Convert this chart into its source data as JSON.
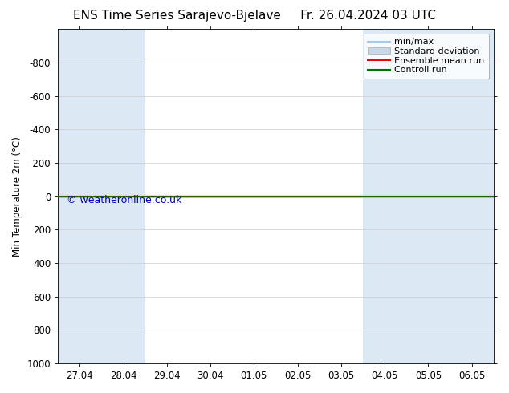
{
  "title": "ENS Time Series Sarajevo-Bjelave",
  "title_right": "Fr. 26.04.2024 03 UTC",
  "ylabel": "Min Temperature 2m (°C)",
  "watermark": "© weatheronline.co.uk",
  "xlim_start": 0,
  "xlim_end": 10,
  "ylim_bottom": 1000,
  "ylim_top": -1000,
  "yticks": [
    -800,
    -600,
    -400,
    -200,
    0,
    200,
    400,
    600,
    800,
    1000
  ],
  "xtick_labels": [
    "27.04",
    "28.04",
    "29.04",
    "30.04",
    "01.05",
    "02.05",
    "03.05",
    "04.05",
    "05.05",
    "06.05"
  ],
  "xtick_positions": [
    0.5,
    1.5,
    2.5,
    3.5,
    4.5,
    5.5,
    6.5,
    7.5,
    8.5,
    9.5
  ],
  "shade_bands": [
    [
      0.0,
      0.5,
      "#dce9f5"
    ],
    [
      0.5,
      1.5,
      "#dce9f5"
    ],
    [
      1.5,
      2.5,
      "#dce9f5"
    ],
    [
      2.5,
      7.5,
      "#ffffff"
    ],
    [
      7.5,
      8.5,
      "#dce9f5"
    ],
    [
      8.5,
      9.5,
      "#dce9f5"
    ],
    [
      9.5,
      10.0,
      "#dce9f5"
    ]
  ],
  "green_line_y": 0,
  "red_line_y": 0,
  "cyan_line_y": 0,
  "bg_color": "#ffffff",
  "plot_bg_color": "#ffffff",
  "legend_labels": [
    "min/max",
    "Standard deviation",
    "Ensemble mean run",
    "Controll run"
  ],
  "minmax_line_color": "#a8c8e8",
  "stddev_fill_color": "#c8d8e8",
  "ensemble_mean_color": "#ff0000",
  "control_run_color": "#007000",
  "title_fontsize": 11,
  "tick_fontsize": 8.5,
  "ylabel_fontsize": 8.5,
  "watermark_color": "#0000cc",
  "watermark_fontsize": 9,
  "legend_fontsize": 8
}
